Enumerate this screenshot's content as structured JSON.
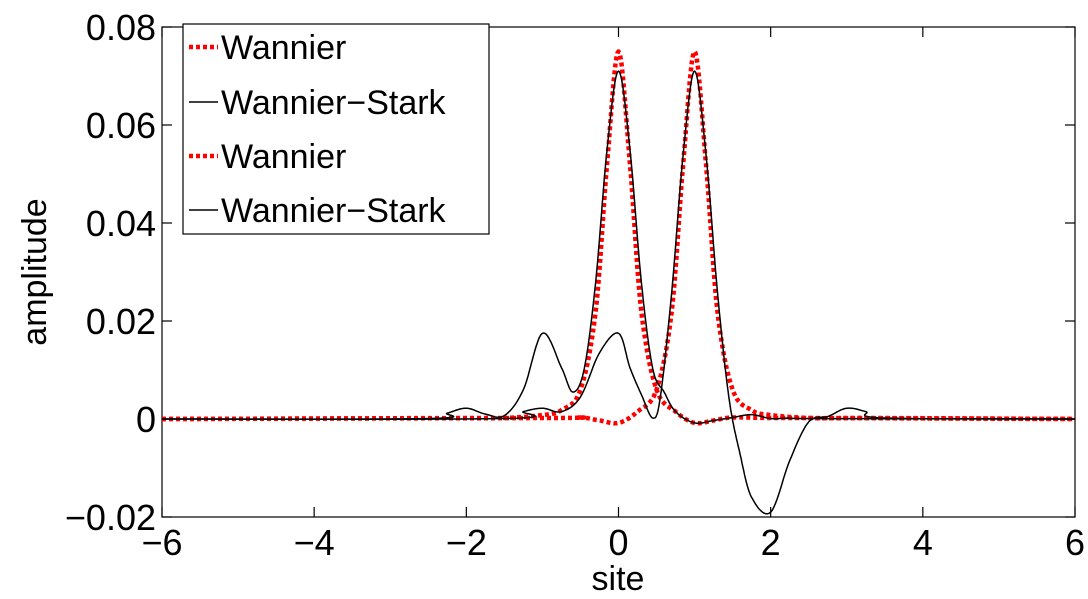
{
  "chart_data": {
    "type": "line",
    "title": "",
    "xlabel": "site",
    "ylabel": "amplitude",
    "xlim": [
      -6,
      6
    ],
    "ylim": [
      -0.02,
      0.08
    ],
    "xticks": [
      -6,
      -4,
      -2,
      0,
      2,
      4,
      6
    ],
    "xtick_labels": [
      "−6",
      "−4",
      "−2",
      "0",
      "2",
      "4",
      "6"
    ],
    "yticks": [
      -0.02,
      0,
      0.02,
      0.04,
      0.06,
      0.08
    ],
    "ytick_labels": [
      "−0.02",
      "0",
      "0.02",
      "0.04",
      "0.06",
      "0.08"
    ],
    "grid": false,
    "legend_position": "top-left",
    "series": [
      {
        "name": "Wannier",
        "color": "#ff0000",
        "style": "dotted",
        "x": [
          -6,
          -2.0,
          -1.5,
          -1.0,
          -0.75,
          -0.5,
          -0.3,
          -0.15,
          0.0,
          0.15,
          0.3,
          0.5,
          0.75,
          1.0,
          1.25,
          1.5,
          2.0,
          2.5,
          6
        ],
        "y": [
          0,
          0.0002,
          0.0002,
          0.0008,
          0.0018,
          0.006,
          0.022,
          0.052,
          0.075,
          0.052,
          0.022,
          0.006,
          0.0015,
          -0.0008,
          -0.0003,
          0.0003,
          0.0002,
          0.0002,
          0
        ]
      },
      {
        "name": "Wannier−Stark",
        "color": "#000000",
        "style": "solid",
        "x": [
          -6,
          -2.5,
          -2.25,
          -2.0,
          -1.75,
          -1.5,
          -1.25,
          -1.0,
          -0.75,
          -0.6,
          -0.45,
          -0.3,
          -0.15,
          0.0,
          0.15,
          0.3,
          0.45,
          0.6,
          0.75,
          1.0,
          1.25,
          1.5,
          1.75,
          2.0,
          2.25,
          2.5,
          6
        ],
        "y": [
          0,
          0.0001,
          0.0012,
          0.0022,
          0.001,
          0.0007,
          0.006,
          0.0175,
          0.0105,
          0.0055,
          0.0103,
          0.028,
          0.055,
          0.071,
          0.055,
          0.028,
          0.0103,
          0.0055,
          0.0015,
          -0.0008,
          -0.0003,
          0.0003,
          0.0009,
          0.0001,
          0.0002,
          0.0001,
          0
        ]
      },
      {
        "name": "Wannier",
        "color": "#ff0000",
        "style": "dotted",
        "x": [
          -6,
          -1.0,
          -0.5,
          -0.25,
          0.0,
          0.25,
          0.5,
          0.7,
          0.85,
          1.0,
          1.15,
          1.3,
          1.5,
          1.75,
          2.0,
          2.5,
          3.0,
          3.5,
          6
        ],
        "y": [
          0,
          0.0002,
          0.0003,
          -0.0003,
          -0.0008,
          0.0015,
          0.006,
          0.022,
          0.052,
          0.075,
          0.052,
          0.022,
          0.006,
          0.0018,
          0.0008,
          0.0002,
          0.0002,
          0.0002,
          0
        ]
      },
      {
        "name": "Wannier−Stark",
        "color": "#000000",
        "style": "solid",
        "x": [
          -6,
          -1.5,
          -1.25,
          -1.0,
          -0.75,
          -0.5,
          -0.25,
          0.0,
          0.15,
          0.3,
          0.45,
          0.55,
          0.7,
          0.85,
          1.0,
          1.15,
          1.3,
          1.45,
          1.6,
          1.75,
          2.0,
          2.25,
          2.5,
          2.75,
          3.0,
          3.25,
          3.5,
          6
        ],
        "y": [
          0,
          0.0001,
          0.0015,
          0.0022,
          0.0015,
          0.0045,
          0.0135,
          0.0175,
          0.0105,
          0.005,
          0.0002,
          0.0045,
          0.026,
          0.054,
          0.071,
          0.054,
          0.026,
          0.0045,
          -0.0073,
          -0.016,
          -0.019,
          -0.0085,
          -0.0006,
          0.0005,
          0.0022,
          0.0015,
          0.0002,
          0
        ]
      }
    ]
  }
}
